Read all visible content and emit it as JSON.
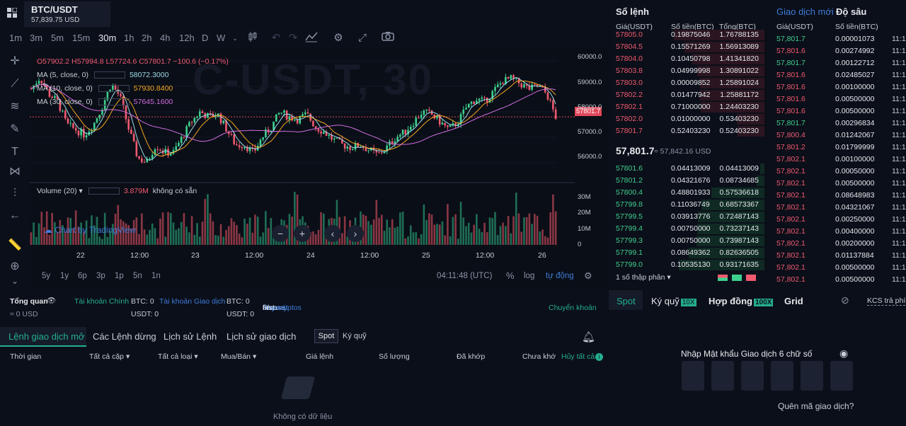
{
  "header": {
    "pair": "BTC/USDT",
    "price": "57,839.75 USD"
  },
  "toolbar": {
    "timeframes": [
      "1m",
      "3m",
      "5m",
      "15m",
      "30m",
      "1h",
      "2h",
      "4h",
      "12h",
      "D",
      "W"
    ],
    "active_timeframe": "30m"
  },
  "chart": {
    "watermark": "C-USDT, 30",
    "legend": {
      "ohlc": "O57902.2  H57994.8  L57724.6  C57801.7  −100.6 (−0.17%)",
      "ma5_label": "MA (5, close, 0)",
      "ma5_value": "58072.3000",
      "ma10_label": "MA (10, close, 0)",
      "ma10_value": "57930.8400",
      "ma30_label": "MA (30, close, 0)",
      "ma30_value": "57645.1600"
    },
    "price_tag": "57801.7",
    "y_ticks": [
      "60000.0",
      "59000.0",
      "58000.0",
      "57000.0",
      "56000.0"
    ],
    "vol_ticks": [
      "30M",
      "20M",
      "10M",
      "0"
    ],
    "x_ticks": [
      "22",
      "12:00",
      "23",
      "12:00",
      "24",
      "12:00",
      "25",
      "12:00",
      "26"
    ],
    "volume_legend": "Volume (20)",
    "volume_value": "3.879M",
    "volume_na": "không có sẵn",
    "brand": "Chart by TradingView",
    "ranges": [
      "5y",
      "1y",
      "6p",
      "3p",
      "1p",
      "5n",
      "1n"
    ],
    "clock": "04:11:48 (UTC)",
    "percent": "%",
    "log": "log",
    "auto": "tự động",
    "colors": {
      "up": "#3ecf8e",
      "down": "#ef5a6f",
      "ma5": "#9bdbe8",
      "ma10": "#f5a623",
      "ma30": "#d16de2"
    }
  },
  "chart_data": {
    "type": "candlestick",
    "x_ticks": [
      "22",
      "12:00",
      "23",
      "12:00",
      "24",
      "12:00",
      "25",
      "12:00",
      "26"
    ],
    "ylim": [
      55500,
      60500
    ],
    "last_price": 57801.7,
    "close_trajectory": [
      58900,
      59350,
      58700,
      58400,
      57500,
      57300,
      57100,
      57500,
      58200,
      59100,
      58600,
      57300,
      56200,
      56000,
      56700,
      56400,
      56400,
      57000,
      57600,
      58000,
      57800,
      57900,
      57300,
      56700,
      56700,
      56400,
      57000,
      57400,
      58000,
      57800,
      57700,
      57900,
      57400,
      57200,
      56900,
      56700,
      56600,
      56700,
      56500,
      56300,
      56600,
      57000,
      57200,
      57600,
      58000,
      57900,
      57600,
      57300,
      57600,
      58200,
      58500,
      58400,
      58800,
      59200,
      59300,
      59100,
      58900,
      59000,
      58700,
      57800
    ]
  },
  "orderbook": {
    "title": "Sổ lệnh",
    "headers": [
      "Giá(USDT)",
      "Số tiền(BTC)",
      "Tổng(BTC)"
    ],
    "asks": [
      {
        "p": "57805.0",
        "a": "0.19875046",
        "t": "1.76788135"
      },
      {
        "p": "57804.5",
        "a": "0.15571269",
        "t": "1.56913089"
      },
      {
        "p": "57804.0",
        "a": "0.10450798",
        "t": "1.41341820"
      },
      {
        "p": "57803.8",
        "a": "0.04999998",
        "t": "1.30891022"
      },
      {
        "p": "57803.0",
        "a": "0.00009852",
        "t": "1.25891024"
      },
      {
        "p": "57802.2",
        "a": "0.01477942",
        "t": "1.25881172"
      },
      {
        "p": "57802.1",
        "a": "0.71000000",
        "t": "1.24403230"
      },
      {
        "p": "57802.0",
        "a": "0.01000000",
        "t": "0.53403230"
      },
      {
        "p": "57801.7",
        "a": "0.52403230",
        "t": "0.52403230"
      }
    ],
    "mid": "57,801.7",
    "mid_usd": "≈ 57,842.16 USD",
    "bids": [
      {
        "p": "57801.6",
        "a": "0.04413009",
        "t": "0.04413009"
      },
      {
        "p": "57801.2",
        "a": "0.04321676",
        "t": "0.08734685"
      },
      {
        "p": "57800.4",
        "a": "0.48801933",
        "t": "0.57536618"
      },
      {
        "p": "57799.8",
        "a": "0.11036749",
        "t": "0.68573367"
      },
      {
        "p": "57799.5",
        "a": "0.03913776",
        "t": "0.72487143"
      },
      {
        "p": "57799.4",
        "a": "0.00750000",
        "t": "0.73237143"
      },
      {
        "p": "57799.3",
        "a": "0.00750000",
        "t": "0.73987143"
      },
      {
        "p": "57799.1",
        "a": "0.08649362",
        "t": "0.82636505"
      },
      {
        "p": "57799.0",
        "a": "0.10535130",
        "t": "0.93171635"
      }
    ],
    "precision": "1 số thập phân"
  },
  "trades": {
    "tab_recent": "Giao dịch mới",
    "tab_depth": "Độ sâu",
    "headers": [
      "Giá(USDT)",
      "Số tiền(BTC)"
    ],
    "rows": [
      {
        "p": "57,801.7",
        "a": "0.00001073",
        "d": "up"
      },
      {
        "p": "57,801.6",
        "a": "0.00274992",
        "d": "dn"
      },
      {
        "p": "57,801.7",
        "a": "0.00122712",
        "d": "up"
      },
      {
        "p": "57,801.6",
        "a": "0.02485027",
        "d": "dn"
      },
      {
        "p": "57,801.6",
        "a": "0.00100000",
        "d": "dn"
      },
      {
        "p": "57,801.6",
        "a": "0.00500000",
        "d": "dn"
      },
      {
        "p": "57,801.6",
        "a": "0.00500000",
        "d": "dn"
      },
      {
        "p": "57,801.7",
        "a": "0.00296834",
        "d": "up"
      },
      {
        "p": "57,800.4",
        "a": "0.01242067",
        "d": "dn"
      },
      {
        "p": "57,801.2",
        "a": "0.01799999",
        "d": "dn"
      },
      {
        "p": "57,802.1",
        "a": "0.00100000",
        "d": "dn"
      },
      {
        "p": "57,802.1",
        "a": "0.00050000",
        "d": "dn"
      },
      {
        "p": "57,802.1",
        "a": "0.00500000",
        "d": "dn"
      },
      {
        "p": "57,802.1",
        "a": "0.08648983",
        "d": "dn"
      },
      {
        "p": "57,802.1",
        "a": "0.04321067",
        "d": "dn"
      },
      {
        "p": "57,802.1",
        "a": "0.00250000",
        "d": "dn"
      },
      {
        "p": "57,802.1",
        "a": "0.00400000",
        "d": "dn"
      },
      {
        "p": "57,802.1",
        "a": "0.00200000",
        "d": "dn"
      },
      {
        "p": "57,802.1",
        "a": "0.01137884",
        "d": "dn"
      },
      {
        "p": "57,802.1",
        "a": "0.00500000",
        "d": "dn"
      },
      {
        "p": "57,802.1",
        "a": "0.00500000",
        "d": "dn"
      }
    ],
    "time_stub": "11:1"
  },
  "account": {
    "overview": "Tổng quan",
    "overview_value": "≈ 0 USD",
    "main_acct": "Tài khoản Chính",
    "main_btc": "BTC: 0",
    "main_usdt": "USDT: 0",
    "trade_acct": "Tài khoản Giao dịch",
    "trade_btc": "BTC: 0",
    "trade_usdt": "USDT: 0",
    "please": "Please",
    "deposit": "Deposit",
    "or": "or",
    "buy": "Buy cryptos",
    "first": "first.",
    "transfer": "Chuyển khoản"
  },
  "orders": {
    "tabs": [
      "Lệnh giao dịch mở",
      "Các Lệnh dừng",
      "Lịch sử Lệnh",
      "Lịch sử giao dịch"
    ],
    "sub_tabs": [
      "Spot",
      "Ký quỹ"
    ],
    "columns": [
      "Thời gian",
      "Tất cả cặp",
      "Tất cả loại",
      "Mua/Bán",
      "Giá lệnh",
      "Số lượng",
      "Đã khớp",
      "Chưa khớ",
      "Hủy tất cả"
    ],
    "empty": "Không có dữ liệu"
  },
  "tradepanel": {
    "tabs": [
      "Spot",
      "Ký quỹ",
      "Hợp đồng",
      "Grid"
    ],
    "badges": [
      "10X",
      "100X"
    ],
    "fee": "KCS trả phí",
    "pin_prompt": "Nhập Mật khẩu Giao dịch 6 chữ số",
    "forgot": "Quên mã giao dịch?"
  }
}
